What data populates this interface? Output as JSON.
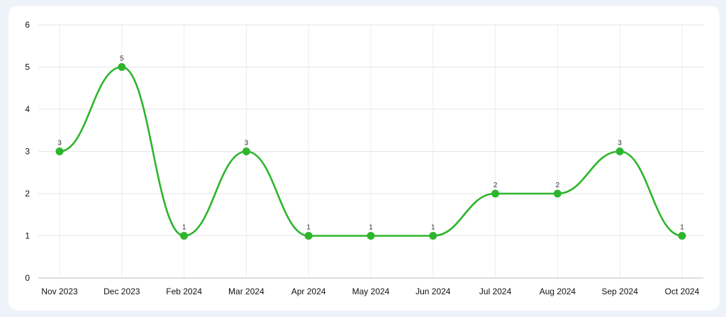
{
  "chart_data": {
    "type": "line",
    "categories": [
      "Nov 2023",
      "Dec 2023",
      "Feb 2024",
      "Mar 2024",
      "Apr 2024",
      "May 2024",
      "Jun 2024",
      "Jul 2024",
      "Aug 2024",
      "Sep 2024",
      "Oct 2024"
    ],
    "series": [
      {
        "values": [
          3,
          5,
          1,
          3,
          1,
          1,
          1,
          2,
          2,
          3,
          1
        ],
        "color": "#2db52d"
      }
    ],
    "ylim": [
      0,
      6
    ],
    "yticks": [
      0,
      1,
      2,
      3,
      4,
      5,
      6
    ],
    "grid": true,
    "smooth": true,
    "data_labels": true
  }
}
